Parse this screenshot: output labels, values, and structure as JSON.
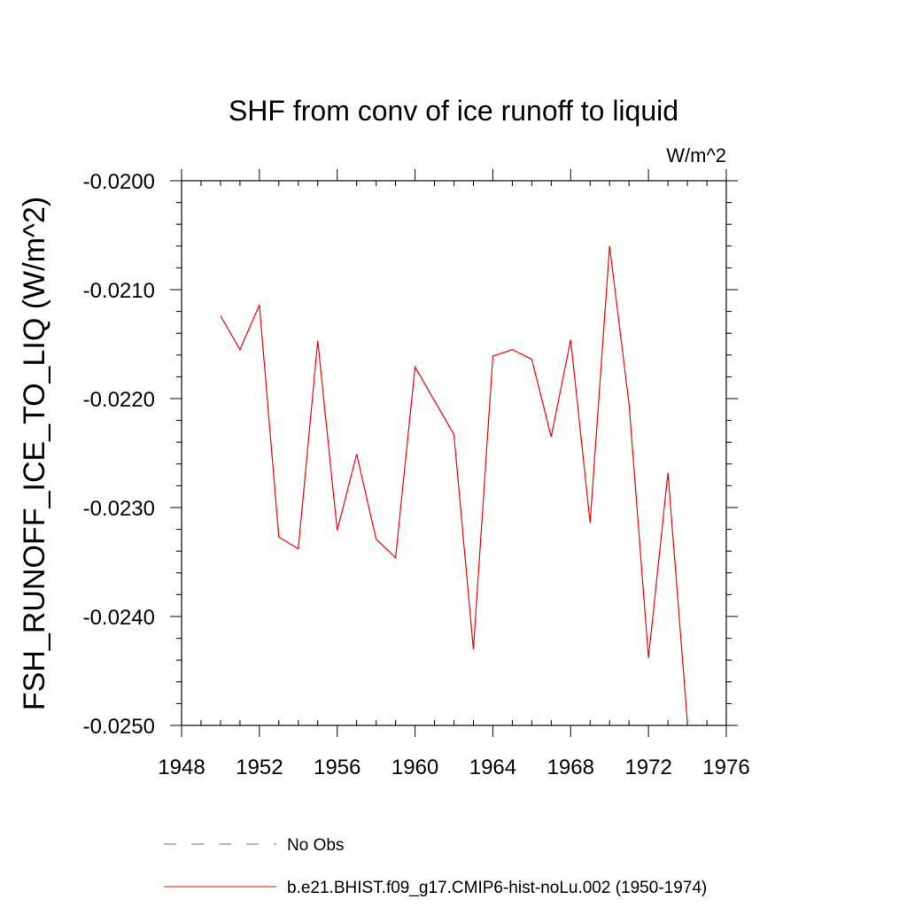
{
  "chart_data": {
    "type": "line",
    "title": "SHF from conv of ice runoff to liquid",
    "units": "W/m^2",
    "xlabel": "",
    "ylabel": "FSH_RUNOFF_ICE_TO_LIQ  (W/m^2)",
    "xlim": [
      1948,
      1976
    ],
    "ylim": [
      -0.025,
      -0.02
    ],
    "x_ticks": [
      1948,
      1952,
      1956,
      1960,
      1964,
      1968,
      1972,
      1976
    ],
    "x_tick_labels": [
      "1948",
      "1952",
      "1956",
      "1960",
      "1964",
      "1968",
      "1972",
      "1976"
    ],
    "y_ticks": [
      -0.02,
      -0.021,
      -0.022,
      -0.023,
      -0.024,
      -0.025
    ],
    "y_tick_labels": [
      "-0.0200",
      "-0.0210",
      "-0.0220",
      "-0.0230",
      "-0.0240",
      "-0.0250"
    ],
    "series": [
      {
        "name": "b.e21.BHIST.f09_g17.CMIP6-hist-noLu.002 (1950-1974)",
        "color": "#ff0000",
        "style": "solid",
        "x": [
          1950,
          1951,
          1952,
          1953,
          1954,
          1955,
          1956,
          1957,
          1958,
          1959,
          1960,
          1961,
          1962,
          1963,
          1964,
          1965,
          1966,
          1967,
          1968,
          1969,
          1970,
          1971,
          1972,
          1973,
          1974
        ],
        "y": [
          -0.02124,
          -0.02155,
          -0.02114,
          -0.02327,
          -0.02338,
          -0.02147,
          -0.02321,
          -0.02251,
          -0.02329,
          -0.02346,
          -0.02171,
          -0.02202,
          -0.02233,
          -0.0243,
          -0.02161,
          -0.02155,
          -0.02164,
          -0.02235,
          -0.02146,
          -0.02314,
          -0.0206,
          -0.02205,
          -0.02438,
          -0.02268,
          -0.02497
        ]
      }
    ],
    "legend": [
      {
        "label": "No Obs",
        "color": "#6a6ad0",
        "style": "dashed"
      },
      {
        "label": "b.e21.BHIST.f09_g17.CMIP6-hist-noLu.002 (1950-1974)",
        "color": "#ff0000",
        "style": "solid"
      }
    ]
  }
}
